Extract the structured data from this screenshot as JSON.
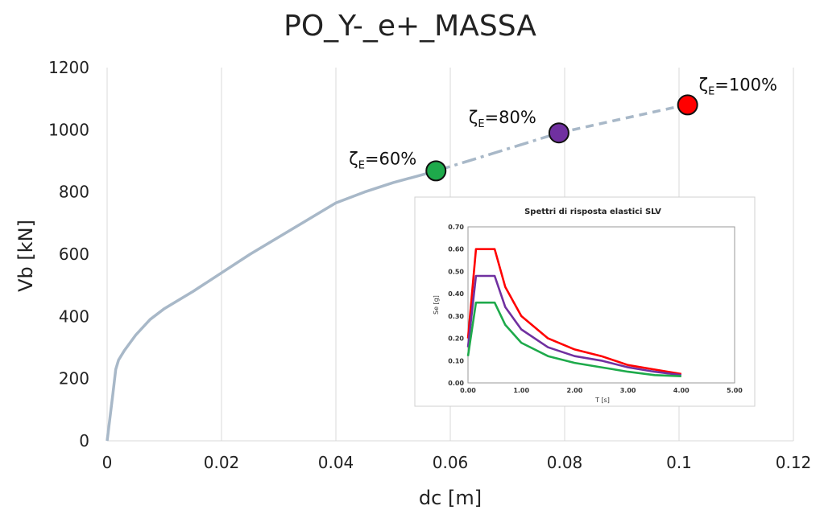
{
  "chart_data": [
    {
      "type": "line",
      "title": "PO_Y-_e+_MASSA",
      "xlabel": "dc [m]",
      "ylabel": "Vb [kN]",
      "xlim": [
        0,
        0.12
      ],
      "ylim": [
        0,
        1200
      ],
      "x_ticks": [
        "0",
        "0.02",
        "0.04",
        "0.06",
        "0.08",
        "0.1",
        "0.12"
      ],
      "y_ticks": [
        "0",
        "200",
        "400",
        "600",
        "800",
        "1000",
        "1200"
      ],
      "grid": "vertical",
      "legend": "none",
      "series": [
        {
          "style": "solid",
          "color": "#a8b8c8",
          "points": [
            [
              0,
              0
            ],
            [
              0.001,
              150
            ],
            [
              0.0015,
              230
            ],
            [
              0.002,
              260
            ],
            [
              0.003,
              290
            ],
            [
              0.005,
              340
            ],
            [
              0.0075,
              390
            ],
            [
              0.01,
              425
            ],
            [
              0.015,
              480
            ],
            [
              0.02,
              540
            ],
            [
              0.025,
              600
            ],
            [
              0.03,
              655
            ],
            [
              0.035,
              710
            ],
            [
              0.04,
              765
            ],
            [
              0.045,
              800
            ],
            [
              0.05,
              830
            ],
            [
              0.055,
              855
            ],
            [
              0.0575,
              868
            ]
          ]
        },
        {
          "style": "dashdot",
          "color": "#a8b8c8",
          "points": [
            [
              0.0575,
              868
            ],
            [
              0.065,
              910
            ],
            [
              0.072,
              950
            ],
            [
              0.079,
              990
            ]
          ]
        },
        {
          "style": "dashed",
          "color": "#a8b8c8",
          "points": [
            [
              0.079,
              990
            ],
            [
              0.09,
              1035
            ],
            [
              0.1,
              1075
            ],
            [
              0.1015,
              1080
            ]
          ]
        }
      ],
      "markers": [
        {
          "x": 0.0575,
          "y": 868,
          "color": "#1eaa4b",
          "label_main": "ζ",
          "label_sub": "E",
          "label_rest": "=60%"
        },
        {
          "x": 0.079,
          "y": 990,
          "color": "#7030a0",
          "label_main": "ζ",
          "label_sub": "E",
          "label_rest": "=80%"
        },
        {
          "x": 0.1015,
          "y": 1080,
          "color": "#ff0000",
          "label_main": "ζ",
          "label_sub": "E",
          "label_rest": "=100%"
        }
      ]
    },
    {
      "type": "line",
      "title": "Spettri di risposta elastici SLV",
      "xlabel": "T [s]",
      "ylabel": "Se [g]",
      "xlim": [
        0,
        5
      ],
      "ylim": [
        0,
        0.7
      ],
      "x_ticks": [
        "0.00",
        "1.00",
        "2.00",
        "3.00",
        "4.00",
        "5.00"
      ],
      "y_ticks": [
        "0.00",
        "0.10",
        "0.20",
        "0.30",
        "0.40",
        "0.50",
        "0.60",
        "0.70"
      ],
      "series": [
        {
          "color": "#ff0000",
          "points": [
            [
              0,
              0.2
            ],
            [
              0.15,
              0.6
            ],
            [
              0.5,
              0.6
            ],
            [
              0.7,
              0.43
            ],
            [
              1,
              0.3
            ],
            [
              1.5,
              0.2
            ],
            [
              2,
              0.15
            ],
            [
              2.5,
              0.12
            ],
            [
              3,
              0.08
            ],
            [
              3.5,
              0.06
            ],
            [
              4,
              0.04
            ]
          ]
        },
        {
          "color": "#7030a0",
          "points": [
            [
              0,
              0.16
            ],
            [
              0.15,
              0.48
            ],
            [
              0.5,
              0.48
            ],
            [
              0.7,
              0.34
            ],
            [
              1,
              0.24
            ],
            [
              1.5,
              0.16
            ],
            [
              2,
              0.12
            ],
            [
              2.5,
              0.1
            ],
            [
              3,
              0.07
            ],
            [
              3.5,
              0.05
            ],
            [
              4,
              0.035
            ]
          ]
        },
        {
          "color": "#1eaa4b",
          "points": [
            [
              0,
              0.12
            ],
            [
              0.15,
              0.36
            ],
            [
              0.5,
              0.36
            ],
            [
              0.7,
              0.26
            ],
            [
              1,
              0.18
            ],
            [
              1.5,
              0.12
            ],
            [
              2,
              0.09
            ],
            [
              2.5,
              0.07
            ],
            [
              3,
              0.05
            ],
            [
              3.5,
              0.035
            ],
            [
              4,
              0.03
            ]
          ]
        }
      ]
    }
  ]
}
